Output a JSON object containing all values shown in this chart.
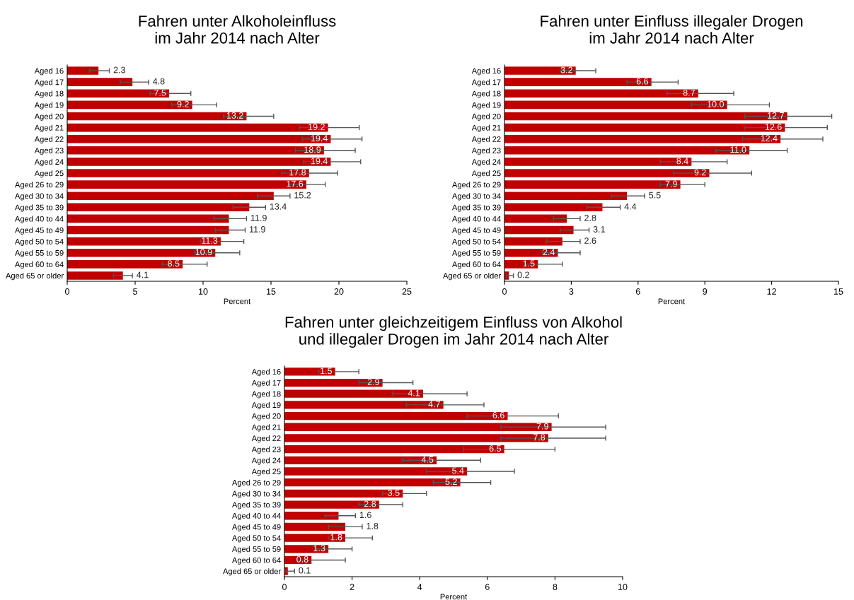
{
  "chart_data": [
    {
      "type": "bar",
      "orientation": "horizontal",
      "title": "Fahren unter Alkoholeinfluss\nim Jahr 2014 nach Alter",
      "xlabel": "Percent",
      "color": "#c00000",
      "categories": [
        "Aged 16",
        "Aged 17",
        "Aged 18",
        "Aged 19",
        "Aged 20",
        "Aged 21",
        "Aged 22",
        "Aged 23",
        "Aged 24",
        "Aged 25",
        "Aged 26 to 29",
        "Aged 30 to 34",
        "Aged 35 to 39",
        "Aged 40 to 44",
        "Aged 45 to 49",
        "Aged 50 to 54",
        "Aged 55 to 59",
        "Aged 60 to 64",
        "Aged 65 or older"
      ],
      "values": [
        2.3,
        4.8,
        7.5,
        9.2,
        13.2,
        19.2,
        19.4,
        18.9,
        19.4,
        17.8,
        17.6,
        15.2,
        13.4,
        11.9,
        11.9,
        11.3,
        10.9,
        8.5,
        4.1
      ],
      "value_labels": [
        "2.3",
        "4.8",
        "7.5",
        "9.2",
        "13.2",
        "19.2",
        "19.4",
        "18.9",
        "19.4",
        "17.8",
        "17.6",
        "15.2",
        "13.4",
        "11.9",
        "11.9",
        "11.3",
        "10.9",
        "8.5",
        "4.1"
      ],
      "errors": [
        [
          1.65,
          3.1
        ],
        [
          3.9,
          6.0
        ],
        [
          6.1,
          9.1
        ],
        [
          7.7,
          11.0
        ],
        [
          11.5,
          15.2
        ],
        [
          17.1,
          21.5
        ],
        [
          17.3,
          21.7
        ],
        [
          16.8,
          21.2
        ],
        [
          17.4,
          21.6
        ],
        [
          15.8,
          19.9
        ],
        [
          16.3,
          19.0
        ],
        [
          14.0,
          16.4
        ],
        [
          12.2,
          14.6
        ],
        [
          10.8,
          13.2
        ],
        [
          10.9,
          13.1
        ],
        [
          9.8,
          13.0
        ],
        [
          9.4,
          12.7
        ],
        [
          7.0,
          10.3
        ],
        [
          3.4,
          4.8
        ]
      ],
      "xlim": [
        0,
        25
      ],
      "xticks": [
        0,
        5,
        10,
        15,
        20,
        25
      ],
      "grid": false,
      "legend": false
    },
    {
      "type": "bar",
      "orientation": "horizontal",
      "title": "Fahren unter Einfluss illegaler Drogen\nim Jahr 2014 nach Alter",
      "xlabel": "Percent",
      "color": "#c00000",
      "categories": [
        "Aged 16",
        "Aged 17",
        "Aged 18",
        "Aged 19",
        "Aged 20",
        "Aged 21",
        "Aged 22",
        "Aged 23",
        "Aged 24",
        "Aged 25",
        "Aged 26 to 29",
        "Aged 30 to 34",
        "Aged 35 to 39",
        "Aged 40 to 44",
        "Aged 45 to 49",
        "Aged 50 to 54",
        "Aged 55 to 59",
        "Aged 60 to 64",
        "Aged 65 or older"
      ],
      "values": [
        3.2,
        6.6,
        8.7,
        10.0,
        12.7,
        12.6,
        12.4,
        11.0,
        8.4,
        9.2,
        7.9,
        5.5,
        4.4,
        2.8,
        3.1,
        2.6,
        2.4,
        1.5,
        0.2
      ],
      "value_labels": [
        "3.2",
        "6.6",
        "8.7",
        "10.0",
        "12.7",
        "12.6",
        "12.4",
        "11.0",
        "8.4",
        "9.2",
        "7.9",
        "5.5",
        "4.4",
        "2.8",
        "3.1",
        "2.6",
        "2.4",
        "1.5",
        "0.2"
      ],
      "errors": [
        [
          2.5,
          4.1
        ],
        [
          5.5,
          7.8
        ],
        [
          7.3,
          10.3
        ],
        [
          8.4,
          11.9
        ],
        [
          10.8,
          14.7
        ],
        [
          10.8,
          14.5
        ],
        [
          10.7,
          14.3
        ],
        [
          9.5,
          12.7
        ],
        [
          7.0,
          10.0
        ],
        [
          7.6,
          11.1
        ],
        [
          7.0,
          9.0
        ],
        [
          4.8,
          6.3
        ],
        [
          3.7,
          5.2
        ],
        [
          2.2,
          3.4
        ],
        [
          2.5,
          3.8
        ],
        [
          1.9,
          3.4
        ],
        [
          1.7,
          3.4
        ],
        [
          0.9,
          2.6
        ],
        [
          0.1,
          0.4
        ]
      ],
      "xlim": [
        0,
        15
      ],
      "xticks": [
        0,
        3,
        6,
        9,
        12,
        15
      ],
      "grid": false,
      "legend": false
    },
    {
      "type": "bar",
      "orientation": "horizontal",
      "title": "Fahren unter gleichzeitigem Einfluss von Alkohol\nund illegaler Drogen im Jahr 2014 nach Alter",
      "xlabel": "Percent",
      "color": "#c00000",
      "categories": [
        "Aged 16",
        "Aged 17",
        "Aged 18",
        "Aged 19",
        "Aged 20",
        "Aged 21",
        "Aged 22",
        "Aged 23",
        "Aged 24",
        "Aged 25",
        "Aged 26 to 29",
        "Aged 30 to 34",
        "Aged 35 to 39",
        "Aged 40 to 44",
        "Aged 45 to 49",
        "Aged 50 to 54",
        "Aged 55 to 59",
        "Aged 60 to 64",
        "Aged 65 or older"
      ],
      "values": [
        1.5,
        2.9,
        4.1,
        4.7,
        6.6,
        7.9,
        7.8,
        6.5,
        4.5,
        5.4,
        5.2,
        3.5,
        2.8,
        1.6,
        1.8,
        1.8,
        1.3,
        0.8,
        0.1
      ],
      "value_labels": [
        "1.5",
        "2.9",
        "4.1",
        "4.7",
        "6.6",
        "7.9",
        "7.8",
        "6.5",
        "4.5",
        "5.4",
        "5.2",
        "3.5",
        "2.8",
        "1.6",
        "1.8",
        "1.8",
        "1.3",
        "0.8",
        "0.1"
      ],
      "errors": [
        [
          1.0,
          2.2
        ],
        [
          2.2,
          3.8
        ],
        [
          3.2,
          5.4
        ],
        [
          3.6,
          5.9
        ],
        [
          5.4,
          8.1
        ],
        [
          6.4,
          9.5
        ],
        [
          6.4,
          9.5
        ],
        [
          5.3,
          8.0
        ],
        [
          3.5,
          5.8
        ],
        [
          4.2,
          6.8
        ],
        [
          4.4,
          6.1
        ],
        [
          2.9,
          4.2
        ],
        [
          2.2,
          3.5
        ],
        [
          1.2,
          2.1
        ],
        [
          1.3,
          2.3
        ],
        [
          1.3,
          2.6
        ],
        [
          0.9,
          2.0
        ],
        [
          0.4,
          1.8
        ],
        [
          0.0,
          0.3
        ]
      ],
      "xlim": [
        0,
        10
      ],
      "xticks": [
        0,
        2,
        4,
        6,
        8,
        10
      ],
      "grid": false,
      "legend": false
    }
  ]
}
